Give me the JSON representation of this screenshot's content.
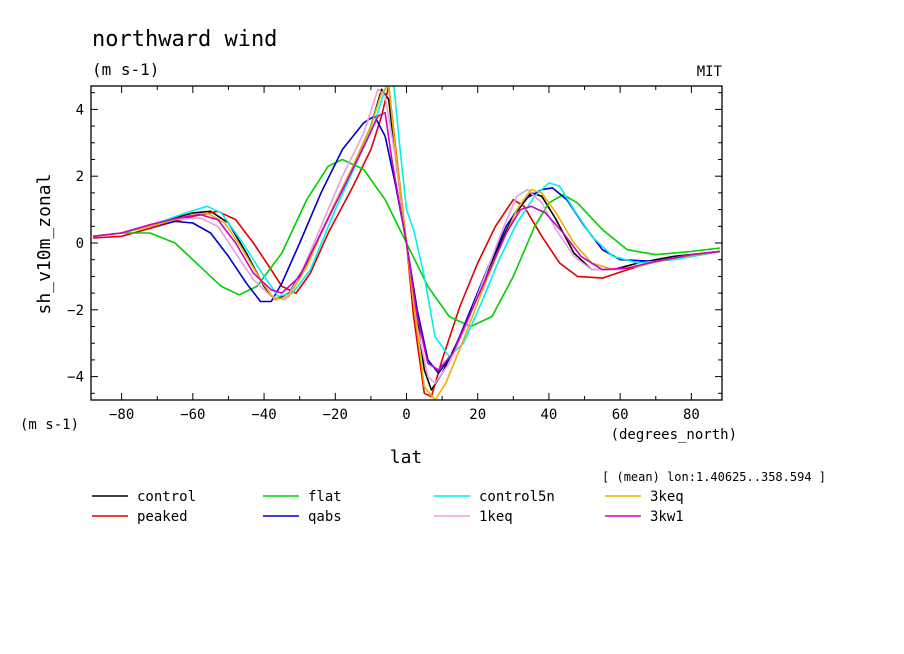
{
  "chart_data": {
    "type": "line",
    "title": "northward wind",
    "units": "(m s-1)",
    "source_label": "MIT",
    "xlabel": "lat",
    "xunits": "(degrees_north)",
    "ylabel": "sh_v10m_zonal",
    "yunits": "(m s-1)",
    "annotation": "[ (mean) lon:1.40625..358.594 ]",
    "xlim": [
      -88.6,
      88.6
    ],
    "ylim": [
      -4.7,
      4.7
    ],
    "xticks": [
      -80,
      -60,
      -40,
      -20,
      0,
      20,
      40,
      60,
      80
    ],
    "xtick_labels": [
      "−80",
      "−60",
      "−40",
      "−20",
      "0",
      "20",
      "40",
      "60",
      "80"
    ],
    "yticks": [
      -4,
      -2,
      0,
      2,
      4
    ],
    "ytick_labels": [
      "−4",
      "−2",
      "0",
      "2",
      "4"
    ],
    "grid": false,
    "legend_position": "bottom",
    "series": [
      {
        "name": "control",
        "color": "#000000",
        "points": [
          [
            -88,
            0.2
          ],
          [
            -80,
            0.3
          ],
          [
            -70,
            0.6
          ],
          [
            -60,
            0.9
          ],
          [
            -55,
            0.95
          ],
          [
            -50,
            0.6
          ],
          [
            -45,
            -0.3
          ],
          [
            -40,
            -1.3
          ],
          [
            -37,
            -1.7
          ],
          [
            -33,
            -1.5
          ],
          [
            -28,
            -0.6
          ],
          [
            -20,
            1.2
          ],
          [
            -15,
            2.3
          ],
          [
            -10,
            3.5
          ],
          [
            -7,
            4.6
          ],
          [
            -5,
            4.3
          ],
          [
            -3,
            2.5
          ],
          [
            0,
            0
          ],
          [
            2,
            -1.5
          ],
          [
            5,
            -3.8
          ],
          [
            7,
            -4.4
          ],
          [
            10,
            -3.9
          ],
          [
            15,
            -2.8
          ],
          [
            20,
            -1.5
          ],
          [
            25,
            -0.3
          ],
          [
            30,
            0.8
          ],
          [
            35,
            1.5
          ],
          [
            38,
            1.4
          ],
          [
            42,
            0.7
          ],
          [
            47,
            -0.3
          ],
          [
            52,
            -0.8
          ],
          [
            58,
            -0.8
          ],
          [
            65,
            -0.6
          ],
          [
            75,
            -0.4
          ],
          [
            88,
            -0.25
          ]
        ]
      },
      {
        "name": "peaked",
        "color": "#e00000",
        "points": [
          [
            -88,
            0.15
          ],
          [
            -80,
            0.2
          ],
          [
            -70,
            0.5
          ],
          [
            -60,
            0.8
          ],
          [
            -53,
            0.95
          ],
          [
            -48,
            0.7
          ],
          [
            -43,
            0
          ],
          [
            -38,
            -0.8
          ],
          [
            -35,
            -1.3
          ],
          [
            -31,
            -1.5
          ],
          [
            -27,
            -0.9
          ],
          [
            -22,
            0.3
          ],
          [
            -15,
            1.7
          ],
          [
            -10,
            2.8
          ],
          [
            -7,
            3.8
          ],
          [
            -5,
            4.7
          ],
          [
            -3,
            2.8
          ],
          [
            0,
            0
          ],
          [
            2,
            -2.2
          ],
          [
            5,
            -4.5
          ],
          [
            7,
            -4.6
          ],
          [
            10,
            -3.5
          ],
          [
            15,
            -1.9
          ],
          [
            20,
            -0.6
          ],
          [
            25,
            0.5
          ],
          [
            30,
            1.3
          ],
          [
            33,
            1.1
          ],
          [
            38,
            0.2
          ],
          [
            43,
            -0.6
          ],
          [
            48,
            -1
          ],
          [
            55,
            -1.05
          ],
          [
            62,
            -0.8
          ],
          [
            70,
            -0.55
          ],
          [
            80,
            -0.35
          ],
          [
            88,
            -0.25
          ]
        ]
      },
      {
        "name": "flat",
        "color": "#00d000",
        "points": [
          [
            -88,
            0.2
          ],
          [
            -80,
            0.3
          ],
          [
            -72,
            0.3
          ],
          [
            -65,
            0
          ],
          [
            -58,
            -0.7
          ],
          [
            -52,
            -1.3
          ],
          [
            -47,
            -1.55
          ],
          [
            -42,
            -1.3
          ],
          [
            -35,
            -0.3
          ],
          [
            -28,
            1.3
          ],
          [
            -22,
            2.3
          ],
          [
            -18,
            2.5
          ],
          [
            -12,
            2.2
          ],
          [
            -6,
            1.3
          ],
          [
            0,
            0
          ],
          [
            6,
            -1.3
          ],
          [
            12,
            -2.2
          ],
          [
            18,
            -2.5
          ],
          [
            24,
            -2.2
          ],
          [
            30,
            -1
          ],
          [
            36,
            0.5
          ],
          [
            40,
            1.2
          ],
          [
            44,
            1.45
          ],
          [
            48,
            1.2
          ],
          [
            55,
            0.4
          ],
          [
            62,
            -0.2
          ],
          [
            70,
            -0.35
          ],
          [
            80,
            -0.25
          ],
          [
            88,
            -0.15
          ]
        ]
      },
      {
        "name": "qabs",
        "color": "#0000cc",
        "points": [
          [
            -88,
            0.2
          ],
          [
            -80,
            0.3
          ],
          [
            -72,
            0.5
          ],
          [
            -65,
            0.65
          ],
          [
            -60,
            0.6
          ],
          [
            -55,
            0.3
          ],
          [
            -50,
            -0.4
          ],
          [
            -45,
            -1.2
          ],
          [
            -41,
            -1.75
          ],
          [
            -38,
            -1.75
          ],
          [
            -35,
            -1.2
          ],
          [
            -30,
            0
          ],
          [
            -24,
            1.5
          ],
          [
            -18,
            2.8
          ],
          [
            -12,
            3.6
          ],
          [
            -9,
            3.8
          ],
          [
            -6,
            3.2
          ],
          [
            -3,
            1.7
          ],
          [
            0,
            0
          ],
          [
            3,
            -2
          ],
          [
            6,
            -3.5
          ],
          [
            9,
            -3.9
          ],
          [
            13,
            -3.3
          ],
          [
            18,
            -2
          ],
          [
            23,
            -0.7
          ],
          [
            28,
            0.5
          ],
          [
            33,
            1.3
          ],
          [
            38,
            1.6
          ],
          [
            41,
            1.65
          ],
          [
            45,
            1.3
          ],
          [
            50,
            0.5
          ],
          [
            55,
            -0.2
          ],
          [
            60,
            -0.5
          ],
          [
            70,
            -0.55
          ],
          [
            80,
            -0.4
          ],
          [
            88,
            -0.25
          ]
        ]
      },
      {
        "name": "control5n",
        "color": "#00f0f0",
        "points": [
          [
            -88,
            0.2
          ],
          [
            -80,
            0.3
          ],
          [
            -70,
            0.6
          ],
          [
            -62,
            0.9
          ],
          [
            -56,
            1.1
          ],
          [
            -52,
            0.9
          ],
          [
            -46,
            0
          ],
          [
            -40,
            -1
          ],
          [
            -36,
            -1.6
          ],
          [
            -32,
            -1.5
          ],
          [
            -27,
            -0.8
          ],
          [
            -20,
            1
          ],
          [
            -14,
            2.4
          ],
          [
            -9,
            3.6
          ],
          [
            -6,
            4.6
          ],
          [
            -4,
            5.2
          ],
          [
            -2,
            3
          ],
          [
            0,
            1
          ],
          [
            2,
            0.4
          ],
          [
            5,
            -1
          ],
          [
            8,
            -2.8
          ],
          [
            12,
            -3.4
          ],
          [
            16,
            -3
          ],
          [
            21,
            -1.8
          ],
          [
            26,
            -0.5
          ],
          [
            31,
            0.6
          ],
          [
            36,
            1.4
          ],
          [
            40,
            1.8
          ],
          [
            43,
            1.7
          ],
          [
            47,
            1
          ],
          [
            52,
            0.2
          ],
          [
            58,
            -0.4
          ],
          [
            65,
            -0.6
          ],
          [
            75,
            -0.5
          ],
          [
            88,
            -0.25
          ]
        ]
      },
      {
        "name": "1keq",
        "color": "#e8a0e0",
        "points": [
          [
            -88,
            0.2
          ],
          [
            -80,
            0.3
          ],
          [
            -72,
            0.5
          ],
          [
            -65,
            0.7
          ],
          [
            -58,
            0.75
          ],
          [
            -53,
            0.5
          ],
          [
            -48,
            -0.3
          ],
          [
            -43,
            -1.1
          ],
          [
            -38,
            -1.6
          ],
          [
            -34,
            -1.7
          ],
          [
            -30,
            -1
          ],
          [
            -24,
            0.5
          ],
          [
            -18,
            2
          ],
          [
            -12,
            3.3
          ],
          [
            -8,
            4.6
          ],
          [
            -6,
            4.4
          ],
          [
            -3,
            2.5
          ],
          [
            0,
            0
          ],
          [
            3,
            -2.5
          ],
          [
            6,
            -4
          ],
          [
            8,
            -4.2
          ],
          [
            12,
            -3.6
          ],
          [
            17,
            -2.4
          ],
          [
            22,
            -1
          ],
          [
            27,
            0.4
          ],
          [
            31,
            1.4
          ],
          [
            34,
            1.6
          ],
          [
            38,
            1.2
          ],
          [
            42,
            0.4
          ],
          [
            47,
            -0.4
          ],
          [
            52,
            -0.8
          ],
          [
            60,
            -0.8
          ],
          [
            70,
            -0.55
          ],
          [
            80,
            -0.35
          ],
          [
            88,
            -0.25
          ]
        ]
      },
      {
        "name": "3keq",
        "color": "#e8b000",
        "points": [
          [
            -88,
            0.2
          ],
          [
            -80,
            0.3
          ],
          [
            -70,
            0.55
          ],
          [
            -62,
            0.8
          ],
          [
            -56,
            0.9
          ],
          [
            -51,
            0.6
          ],
          [
            -46,
            -0.2
          ],
          [
            -41,
            -1.1
          ],
          [
            -37,
            -1.7
          ],
          [
            -33,
            -1.6
          ],
          [
            -28,
            -0.7
          ],
          [
            -21,
            1
          ],
          [
            -15,
            2.3
          ],
          [
            -10,
            3.5
          ],
          [
            -7,
            4.5
          ],
          [
            -5,
            4.7
          ],
          [
            -3,
            2.7
          ],
          [
            0,
            0
          ],
          [
            2,
            -1.8
          ],
          [
            5,
            -4.3
          ],
          [
            8,
            -4.7
          ],
          [
            11,
            -4.2
          ],
          [
            16,
            -2.9
          ],
          [
            21,
            -1.5
          ],
          [
            26,
            -0.2
          ],
          [
            31,
            1
          ],
          [
            35,
            1.6
          ],
          [
            38,
            1.5
          ],
          [
            42,
            0.9
          ],
          [
            47,
            0
          ],
          [
            52,
            -0.6
          ],
          [
            58,
            -0.8
          ],
          [
            65,
            -0.7
          ],
          [
            75,
            -0.45
          ],
          [
            88,
            -0.25
          ]
        ]
      },
      {
        "name": "3kw1",
        "color": "#d000c0",
        "points": [
          [
            -88,
            0.2
          ],
          [
            -80,
            0.3
          ],
          [
            -72,
            0.55
          ],
          [
            -64,
            0.75
          ],
          [
            -58,
            0.85
          ],
          [
            -53,
            0.7
          ],
          [
            -48,
            0
          ],
          [
            -43,
            -0.9
          ],
          [
            -38,
            -1.4
          ],
          [
            -35,
            -1.5
          ],
          [
            -30,
            -1
          ],
          [
            -24,
            0.3
          ],
          [
            -17,
            1.8
          ],
          [
            -11,
            3.1
          ],
          [
            -8,
            3.8
          ],
          [
            -6,
            3.9
          ],
          [
            -4,
            2.4
          ],
          [
            0,
            0
          ],
          [
            3,
            -2.2
          ],
          [
            6,
            -3.6
          ],
          [
            9,
            -3.8
          ],
          [
            13,
            -3.3
          ],
          [
            18,
            -2.1
          ],
          [
            23,
            -0.9
          ],
          [
            28,
            0.3
          ],
          [
            32,
            1
          ],
          [
            35,
            1.1
          ],
          [
            39,
            0.9
          ],
          [
            44,
            0.3
          ],
          [
            49,
            -0.4
          ],
          [
            55,
            -0.8
          ],
          [
            62,
            -0.75
          ],
          [
            70,
            -0.55
          ],
          [
            80,
            -0.35
          ],
          [
            88,
            -0.25
          ]
        ]
      }
    ]
  }
}
